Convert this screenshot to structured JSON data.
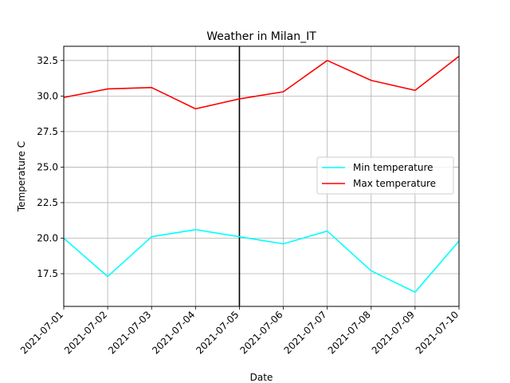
{
  "chart_data": {
    "type": "line",
    "title": "Weather in Milan_IT",
    "xlabel": "Date",
    "ylabel": "Temperature C",
    "x": [
      "2021-07-01",
      "2021-07-02",
      "2021-07-03",
      "2021-07-04",
      "2021-07-05",
      "2021-07-06",
      "2021-07-07",
      "2021-07-08",
      "2021-07-09",
      "2021-07-10"
    ],
    "ylim": [
      15.2,
      33.5
    ],
    "yticks": [
      17.5,
      20.0,
      22.5,
      25.0,
      27.5,
      30.0,
      32.5
    ],
    "ytick_labels": [
      "17.5",
      "20.0",
      "22.5",
      "25.0",
      "27.5",
      "30.0",
      "32.5"
    ],
    "grid": true,
    "legend_position": "center-right",
    "vertical_marker": {
      "x": "2021-07-05",
      "color": "#000000"
    },
    "series": [
      {
        "name": "Min temperature",
        "color": "#00ffff",
        "values": [
          20.0,
          17.3,
          20.1,
          20.6,
          20.1,
          19.6,
          20.5,
          17.7,
          16.2,
          19.8
        ]
      },
      {
        "name": "Max temperature",
        "color": "#ff0000",
        "values": [
          29.9,
          30.5,
          30.6,
          29.1,
          29.8,
          30.3,
          32.5,
          31.1,
          30.4,
          32.8
        ]
      }
    ]
  }
}
